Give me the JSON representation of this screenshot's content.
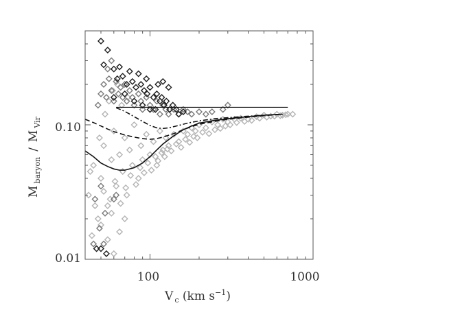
{
  "chart_data": {
    "type": "scatter",
    "title": "",
    "xlabel": {
      "main": "V",
      "sub": "c",
      "rest": " (km s",
      "sup": "−1",
      "close": ")"
    },
    "ylabel": {
      "m1": "M",
      "sub1": "baryon",
      "slash": "/",
      "m2": "M",
      "sub2": "Vir"
    },
    "x_scale": "log",
    "y_scale": "log",
    "xlim": [
      40,
      1000
    ],
    "ylim": [
      0.01,
      0.5
    ],
    "x_ticks": [
      100,
      1000
    ],
    "x_tick_labels": [
      "100",
      "1000"
    ],
    "y_ticks": [
      0.01,
      0.1
    ],
    "y_tick_labels": [
      "0.01",
      "0.10"
    ],
    "grid": false,
    "reference_line": {
      "y": 0.135,
      "x_range": [
        62,
        700
      ]
    },
    "series": [
      {
        "style": "light-gray-diamonds",
        "color": "#b4b4b4",
        "points": [
          [
            42,
            0.03
          ],
          [
            45,
            0.05
          ],
          [
            48,
            0.02
          ],
          [
            50,
            0.04
          ],
          [
            52,
            0.07
          ],
          [
            55,
            0.025
          ],
          [
            58,
            0.055
          ],
          [
            60,
            0.09
          ],
          [
            62,
            0.035
          ],
          [
            65,
            0.06
          ],
          [
            68,
            0.045
          ],
          [
            70,
            0.08
          ],
          [
            72,
            0.03
          ],
          [
            75,
            0.065
          ],
          [
            78,
            0.05
          ],
          [
            80,
            0.1
          ],
          [
            85,
            0.04
          ],
          [
            88,
            0.07
          ],
          [
            90,
            0.055
          ],
          [
            95,
            0.085
          ],
          [
            100,
            0.06
          ],
          [
            105,
            0.075
          ],
          [
            110,
            0.05
          ],
          [
            115,
            0.09
          ],
          [
            120,
            0.065
          ],
          [
            125,
            0.08
          ],
          [
            130,
            0.07
          ],
          [
            140,
            0.085
          ],
          [
            150,
            0.075
          ],
          [
            160,
            0.09
          ],
          [
            170,
            0.085
          ],
          [
            180,
            0.095
          ],
          [
            190,
            0.09
          ],
          [
            200,
            0.1
          ],
          [
            220,
            0.095
          ],
          [
            240,
            0.105
          ],
          [
            260,
            0.1
          ],
          [
            280,
            0.11
          ],
          [
            300,
            0.105
          ],
          [
            330,
            0.11
          ],
          [
            360,
            0.112
          ],
          [
            400,
            0.11
          ],
          [
            450,
            0.115
          ],
          [
            500,
            0.118
          ],
          [
            550,
            0.116
          ],
          [
            600,
            0.12
          ],
          [
            650,
            0.118
          ],
          [
            700,
            0.12
          ],
          [
            44,
            0.015
          ],
          [
            47,
            0.012
          ],
          [
            50,
            0.018
          ],
          [
            55,
            0.014
          ],
          [
            60,
            0.011
          ],
          [
            65,
            0.016
          ],
          [
            70,
            0.02
          ],
          [
            58,
            0.022
          ],
          [
            46,
            0.025
          ],
          [
            43,
            0.045
          ],
          [
            49,
            0.08
          ],
          [
            53,
            0.12
          ],
          [
            56,
            0.15
          ],
          [
            59,
            0.18
          ],
          [
            63,
            0.2
          ],
          [
            67,
            0.14
          ],
          [
            73,
            0.16
          ],
          [
            52,
            0.032
          ],
          [
            57,
            0.028
          ],
          [
            61,
            0.038
          ],
          [
            66,
            0.026
          ],
          [
            71,
            0.034
          ],
          [
            76,
            0.042
          ],
          [
            82,
            0.036
          ],
          [
            87,
            0.048
          ],
          [
            92,
            0.044
          ],
          [
            97,
            0.052
          ],
          [
            102,
            0.046
          ],
          [
            108,
            0.058
          ],
          [
            112,
            0.054
          ],
          [
            118,
            0.062
          ],
          [
            123,
            0.058
          ],
          [
            128,
            0.066
          ],
          [
            135,
            0.064
          ],
          [
            145,
            0.072
          ],
          [
            155,
            0.068
          ],
          [
            165,
            0.078
          ],
          [
            175,
            0.074
          ],
          [
            185,
            0.082
          ],
          [
            195,
            0.08
          ],
          [
            210,
            0.088
          ],
          [
            230,
            0.086
          ],
          [
            250,
            0.092
          ],
          [
            270,
            0.094
          ],
          [
            290,
            0.098
          ],
          [
            310,
            0.1
          ],
          [
            340,
            0.104
          ],
          [
            380,
            0.106
          ],
          [
            420,
            0.108
          ],
          [
            470,
            0.112
          ],
          [
            520,
            0.114
          ],
          [
            580,
            0.116
          ],
          [
            630,
            0.117
          ],
          [
            680,
            0.119
          ],
          [
            750,
            0.12
          ]
        ]
      },
      {
        "style": "dark-gray-diamonds",
        "color": "#7a7a7a",
        "points": [
          [
            48,
            0.14
          ],
          [
            50,
            0.17
          ],
          [
            52,
            0.2
          ],
          [
            54,
            0.16
          ],
          [
            56,
            0.22
          ],
          [
            58,
            0.18
          ],
          [
            60,
            0.15
          ],
          [
            62,
            0.21
          ],
          [
            64,
            0.17
          ],
          [
            66,
            0.19
          ],
          [
            68,
            0.16
          ],
          [
            70,
            0.2
          ],
          [
            72,
            0.15
          ],
          [
            75,
            0.18
          ],
          [
            78,
            0.16
          ],
          [
            80,
            0.14
          ],
          [
            85,
            0.17
          ],
          [
            88,
            0.15
          ],
          [
            90,
            0.13
          ],
          [
            95,
            0.16
          ],
          [
            100,
            0.14
          ],
          [
            105,
            0.13
          ],
          [
            110,
            0.15
          ],
          [
            115,
            0.12
          ],
          [
            120,
            0.14
          ],
          [
            125,
            0.13
          ],
          [
            130,
            0.12
          ],
          [
            140,
            0.13
          ],
          [
            150,
            0.12
          ],
          [
            160,
            0.13
          ],
          [
            170,
            0.125
          ],
          [
            180,
            0.12
          ],
          [
            200,
            0.125
          ],
          [
            220,
            0.12
          ],
          [
            55,
            0.26
          ],
          [
            58,
            0.3
          ],
          [
            50,
            0.035
          ],
          [
            53,
            0.022
          ],
          [
            46,
            0.028
          ],
          [
            60,
            0.028
          ],
          [
            49,
            0.017
          ],
          [
            52,
            0.013
          ],
          [
            45,
            0.013
          ],
          [
            62,
            0.03
          ],
          [
            240,
            0.125
          ],
          [
            280,
            0.13
          ],
          [
            300,
            0.14
          ]
        ]
      },
      {
        "style": "black-diamonds",
        "color": "#1e1e1e",
        "points": [
          [
            50,
            0.42
          ],
          [
            55,
            0.36
          ],
          [
            52,
            0.28
          ],
          [
            60,
            0.26
          ],
          [
            63,
            0.22
          ],
          [
            68,
            0.23
          ],
          [
            72,
            0.2
          ],
          [
            78,
            0.21
          ],
          [
            82,
            0.19
          ],
          [
            88,
            0.2
          ],
          [
            92,
            0.18
          ],
          [
            96,
            0.17
          ],
          [
            100,
            0.19
          ],
          [
            105,
            0.16
          ],
          [
            110,
            0.17
          ],
          [
            115,
            0.15
          ],
          [
            118,
            0.16
          ],
          [
            122,
            0.14
          ],
          [
            126,
            0.15
          ],
          [
            132,
            0.13
          ],
          [
            138,
            0.14
          ],
          [
            145,
            0.13
          ],
          [
            150,
            0.12
          ],
          [
            160,
            0.125
          ],
          [
            120,
            0.21
          ],
          [
            130,
            0.19
          ],
          [
            112,
            0.2
          ],
          [
            95,
            0.22
          ],
          [
            85,
            0.24
          ],
          [
            75,
            0.25
          ],
          [
            65,
            0.27
          ],
          [
            60,
            0.16
          ],
          [
            70,
            0.17
          ],
          [
            80,
            0.15
          ],
          [
            90,
            0.14
          ],
          [
            100,
            0.13
          ],
          [
            108,
            0.13
          ],
          [
            50,
            0.012
          ],
          [
            54,
            0.011
          ],
          [
            47,
            0.012
          ]
        ]
      }
    ],
    "curves": [
      {
        "style": "solid",
        "points": [
          [
            40,
            0.064
          ],
          [
            45,
            0.058
          ],
          [
            50,
            0.052
          ],
          [
            55,
            0.049
          ],
          [
            60,
            0.047
          ],
          [
            65,
            0.046
          ],
          [
            70,
            0.046
          ],
          [
            80,
            0.048
          ],
          [
            90,
            0.052
          ],
          [
            100,
            0.058
          ],
          [
            110,
            0.065
          ],
          [
            120,
            0.072
          ],
          [
            140,
            0.083
          ],
          [
            160,
            0.092
          ],
          [
            180,
            0.098
          ],
          [
            200,
            0.103
          ],
          [
            250,
            0.108
          ],
          [
            300,
            0.111
          ],
          [
            400,
            0.115
          ],
          [
            500,
            0.118
          ],
          [
            650,
            0.12
          ]
        ]
      },
      {
        "style": "dashed",
        "points": [
          [
            40,
            0.11
          ],
          [
            45,
            0.104
          ],
          [
            50,
            0.098
          ],
          [
            55,
            0.093
          ],
          [
            60,
            0.089
          ],
          [
            70,
            0.084
          ],
          [
            80,
            0.081
          ],
          [
            90,
            0.079
          ],
          [
            100,
            0.078
          ],
          [
            110,
            0.079
          ],
          [
            120,
            0.081
          ],
          [
            140,
            0.086
          ],
          [
            160,
            0.092
          ],
          [
            180,
            0.097
          ],
          [
            200,
            0.101
          ],
          [
            250,
            0.106
          ],
          [
            300,
            0.11
          ],
          [
            400,
            0.114
          ],
          [
            500,
            0.117
          ],
          [
            650,
            0.12
          ]
        ]
      },
      {
        "style": "dash-dot",
        "points": [
          [
            62,
            0.134
          ],
          [
            70,
            0.126
          ],
          [
            80,
            0.115
          ],
          [
            90,
            0.106
          ],
          [
            100,
            0.099
          ],
          [
            110,
            0.095
          ],
          [
            120,
            0.094
          ],
          [
            130,
            0.095
          ],
          [
            150,
            0.099
          ],
          [
            170,
            0.103
          ],
          [
            200,
            0.107
          ],
          [
            250,
            0.111
          ],
          [
            300,
            0.113
          ],
          [
            400,
            0.116
          ],
          [
            500,
            0.118
          ],
          [
            650,
            0.12
          ]
        ]
      }
    ]
  }
}
